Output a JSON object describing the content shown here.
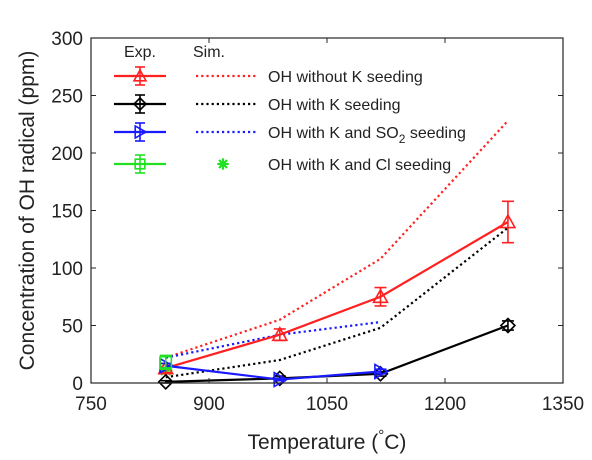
{
  "chart_data": {
    "type": "line",
    "xlabel": "Temperature (",
    "xlabel_unit": "C)",
    "xlabel_degree": "°",
    "ylabel": "Concentration of OH radical (ppm)",
    "xlim": [
      750,
      1350
    ],
    "ylim": [
      0,
      300
    ],
    "xticks": [
      750,
      900,
      1050,
      1200,
      1350
    ],
    "yticks": [
      0,
      50,
      100,
      150,
      200,
      250,
      300
    ],
    "grid": false,
    "legend": {
      "placement": "top-left",
      "header_exp": "Exp.",
      "header_sim": "Sim.",
      "entries": [
        {
          "label": "OH without K seeding",
          "color": "#ff2020"
        },
        {
          "label": "OH with K seeding",
          "color": "#000000"
        },
        {
          "label_main": "OH with K and SO",
          "label_sub": "2",
          "label_tail": " seeding",
          "color": "#1a1aff"
        },
        {
          "label": "OH with K and Cl seeding",
          "color": "#22e022"
        }
      ]
    },
    "experimental": [
      {
        "name": "OH without K seeding",
        "color": "#ff2020",
        "marker": "triangle",
        "x": [
          845,
          990,
          1118,
          1280
        ],
        "y": [
          13,
          42,
          75,
          140
        ],
        "err": [
          4,
          5,
          8,
          18
        ]
      },
      {
        "name": "OH with K seeding",
        "color": "#000000",
        "marker": "diamond",
        "x": [
          845,
          990,
          1118,
          1280
        ],
        "y": [
          1,
          4,
          8,
          50
        ],
        "err": [
          1,
          2,
          2,
          4
        ]
      },
      {
        "name": "OH with K and SO2 seeding",
        "color": "#1a1aff",
        "marker": "triangle-right",
        "x": [
          845,
          990,
          1118
        ],
        "y": [
          15,
          3,
          10
        ],
        "err": [
          2,
          1,
          2
        ]
      },
      {
        "name": "OH with K and Cl seeding",
        "color": "#22e022",
        "marker": "square",
        "x": [
          845
        ],
        "y": [
          18
        ],
        "err": [
          6
        ]
      }
    ],
    "simulated": [
      {
        "name": "OH without K seeding",
        "color": "#ff2020",
        "style": "dotted",
        "x": [
          845,
          990,
          1118,
          1280
        ],
        "y": [
          22,
          55,
          108,
          228
        ]
      },
      {
        "name": "OH with K seeding",
        "color": "#000000",
        "style": "dotted",
        "x": [
          845,
          990,
          1118,
          1280
        ],
        "y": [
          5,
          20,
          48,
          135
        ]
      },
      {
        "name": "OH with K and SO2 seeding",
        "color": "#1a1aff",
        "style": "dotted",
        "x": [
          845,
          990,
          1118
        ],
        "y": [
          22,
          42,
          53
        ]
      },
      {
        "name": "OH with K and Cl seeding",
        "color": "#22e022",
        "style": "asterisk",
        "x": [
          845
        ],
        "y": [
          11
        ]
      }
    ]
  }
}
